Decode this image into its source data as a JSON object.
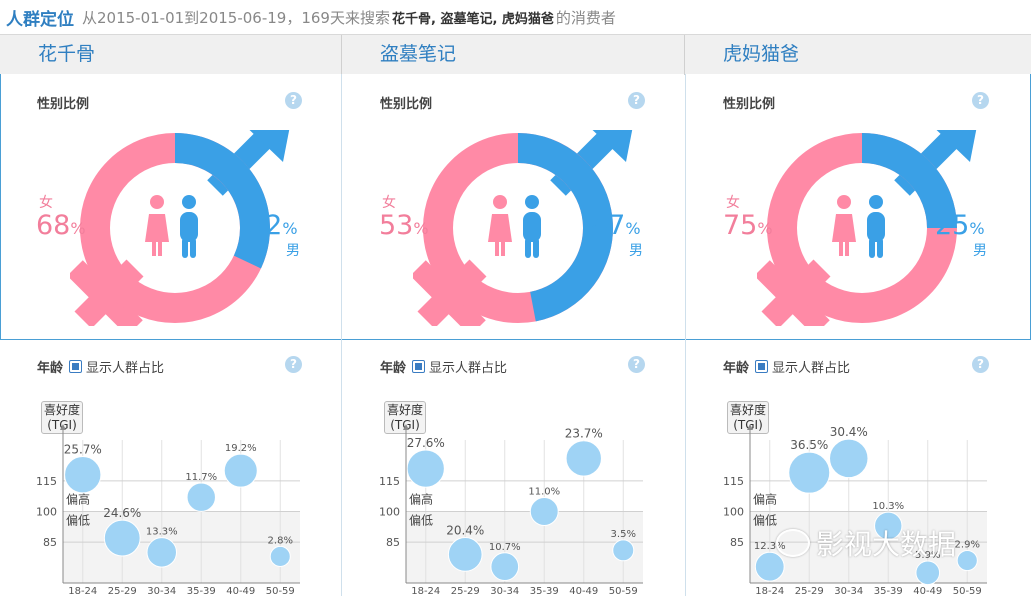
{
  "header": {
    "title": "人群定位",
    "desc_prefix": "从2015-01-01到2015-06-19，169天来搜索",
    "keywords": "花千骨, 盗墓笔记, 虎妈猫爸",
    "desc_suffix": "的消费者"
  },
  "tabs": [
    "花千骨",
    "盗墓笔记",
    "虎妈猫爸"
  ],
  "gender": {
    "title": "性别比例",
    "help": "?",
    "female_label": "女",
    "male_label": "男",
    "percent_sign": "%",
    "colors": {
      "female": "#ff8aa6",
      "male": "#3aa0e6"
    },
    "items": [
      {
        "female": "68",
        "male": "32",
        "female_fraction": 0.68,
        "male_fraction": 0.32
      },
      {
        "female": "53",
        "male": "47",
        "female_fraction": 0.53,
        "male_fraction": 0.47
      },
      {
        "female": "75",
        "male": "25",
        "female_fraction": 0.75,
        "male_fraction": 0.25
      }
    ]
  },
  "age": {
    "title": "年龄",
    "toggle_label": "显示人群占比",
    "help": "?",
    "tgi_label_line1": "喜好度",
    "tgi_label_line2": "(TGI)",
    "above_label": "偏高",
    "below_label": "偏低",
    "bubble_color": "#9fd3f5"
  },
  "chart_data": [
    {
      "type": "scatter",
      "title": "花千骨",
      "ylabel": "喜好度 (TGI)",
      "y_ticks": [
        "115",
        "100",
        "85"
      ],
      "categories": [
        "18-24",
        "25-29",
        "30-34",
        "35-39",
        "40-49",
        "50-59"
      ],
      "tgi": [
        118,
        87,
        80,
        107,
        120,
        78
      ],
      "share_labels": [
        "25.7%",
        "24.6%",
        "13.3%",
        "11.7%",
        "19.2%",
        "2.8%"
      ],
      "share": [
        25.7,
        24.6,
        13.3,
        11.7,
        19.2,
        2.8
      ]
    },
    {
      "type": "scatter",
      "title": "盗墓笔记",
      "ylabel": "喜好度 (TGI)",
      "y_ticks": [
        "115",
        "100",
        "85"
      ],
      "categories": [
        "18-24",
        "25-29",
        "30-34",
        "35-39",
        "40-49",
        "50-59"
      ],
      "tgi": [
        121,
        79,
        73,
        100,
        126,
        81
      ],
      "share_labels": [
        "27.6%",
        "20.4%",
        "10.7%",
        "11.0%",
        "23.7%",
        "3.5%"
      ],
      "share": [
        27.6,
        20.4,
        10.7,
        11.0,
        23.7,
        3.5
      ]
    },
    {
      "type": "scatter",
      "title": "虎妈猫爸",
      "ylabel": "喜好度 (TGI)",
      "y_ticks": [
        "115",
        "100",
        "85"
      ],
      "categories": [
        "18-24",
        "25-29",
        "30-34",
        "35-39",
        "40-49",
        "50-59"
      ],
      "tgi": [
        73,
        119,
        126,
        93,
        70,
        76
      ],
      "share_labels": [
        "12.3%",
        "36.5%",
        "30.4%",
        "10.3%",
        "5.9%",
        "2.9%"
      ],
      "share": [
        12.3,
        36.5,
        30.4,
        10.3,
        5.9,
        2.9
      ]
    }
  ],
  "watermark": "影视大数据"
}
